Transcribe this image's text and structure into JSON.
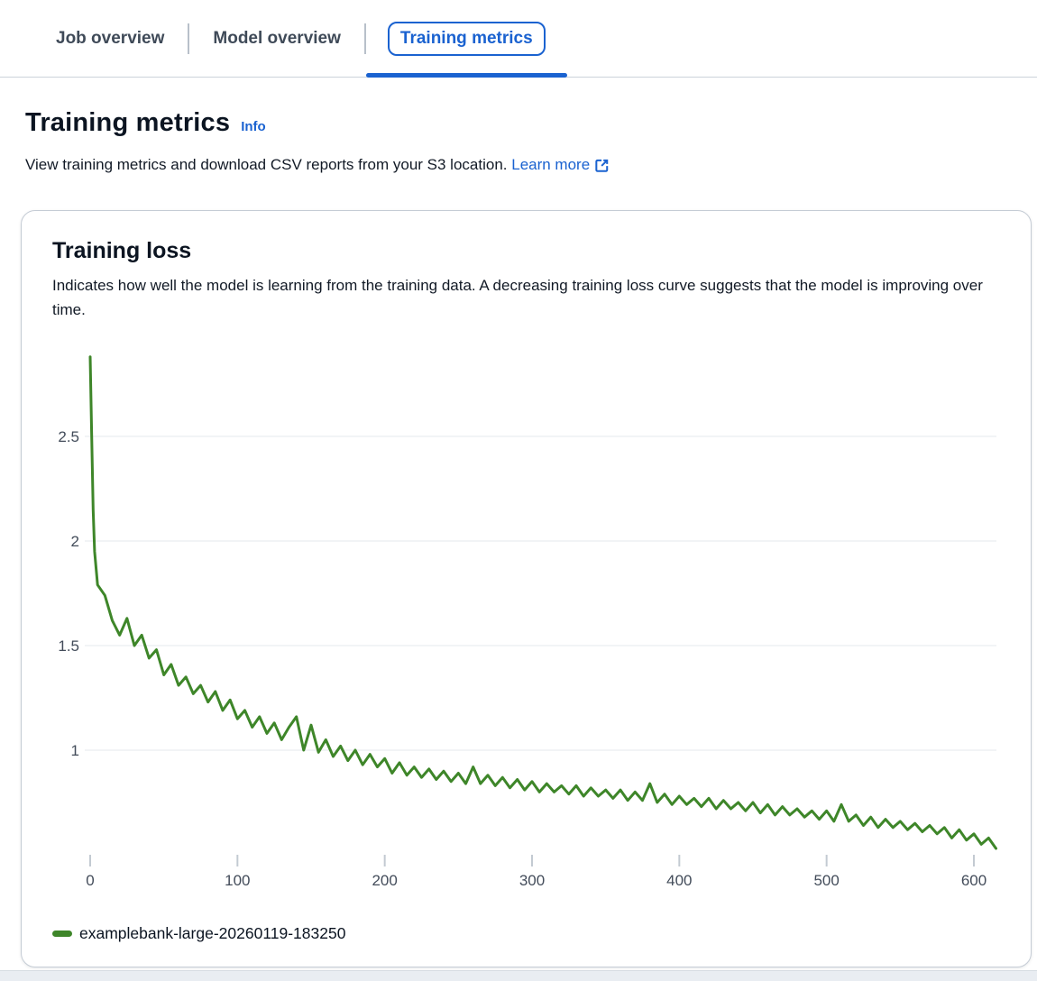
{
  "tabs": [
    {
      "label": "Job overview",
      "active": false
    },
    {
      "label": "Model overview",
      "active": false
    },
    {
      "label": "Training metrics",
      "active": true
    }
  ],
  "header": {
    "title": "Training metrics",
    "info_label": "Info",
    "description": "View training metrics and download CSV reports from your S3 location.",
    "learn_more_label": "Learn more",
    "external_link_icon": "external-link-icon"
  },
  "card": {
    "title": "Training loss",
    "description": "Indicates how well the model is learning from the training data. A decreasing training loss curve suggests that the model is improving over time."
  },
  "colors": {
    "accent": "#1a62d0",
    "series_green": "#3e8629",
    "axis_label": "#434c5a",
    "gridline": "#e6e9ed",
    "tick": "#c3cad2"
  },
  "chart_data": {
    "type": "line",
    "title": "Training loss",
    "xlabel": "",
    "ylabel": "",
    "xlim": [
      0,
      617
    ],
    "ylim": [
      0.45,
      2.95
    ],
    "x_ticks": [
      0,
      100,
      200,
      300,
      400,
      500,
      600
    ],
    "y_ticks": [
      1,
      1.5,
      2,
      2.5
    ],
    "grid": "horizontal",
    "legend_position": "bottom-left",
    "series": [
      {
        "name": "examplebank-large-20260119-183250",
        "color": "#3e8629",
        "x": [
          0,
          1,
          2,
          3,
          5,
          10,
          15,
          20,
          25,
          30,
          35,
          40,
          45,
          50,
          55,
          60,
          65,
          70,
          75,
          80,
          85,
          90,
          95,
          100,
          105,
          110,
          115,
          120,
          125,
          130,
          135,
          140,
          145,
          150,
          155,
          160,
          165,
          170,
          175,
          180,
          185,
          190,
          195,
          200,
          205,
          210,
          215,
          220,
          225,
          230,
          235,
          240,
          245,
          250,
          255,
          260,
          265,
          270,
          275,
          280,
          285,
          290,
          295,
          300,
          305,
          310,
          315,
          320,
          325,
          330,
          335,
          340,
          345,
          350,
          355,
          360,
          365,
          370,
          375,
          380,
          385,
          390,
          395,
          400,
          405,
          410,
          415,
          420,
          425,
          430,
          435,
          440,
          445,
          450,
          455,
          460,
          465,
          470,
          475,
          480,
          485,
          490,
          495,
          500,
          505,
          510,
          515,
          520,
          525,
          530,
          535,
          540,
          545,
          550,
          555,
          560,
          565,
          570,
          575,
          580,
          585,
          590,
          595,
          600,
          605,
          610,
          615
        ],
        "y": [
          2.88,
          2.52,
          2.15,
          1.95,
          1.79,
          1.74,
          1.62,
          1.55,
          1.63,
          1.5,
          1.55,
          1.44,
          1.48,
          1.36,
          1.41,
          1.31,
          1.35,
          1.27,
          1.31,
          1.23,
          1.28,
          1.19,
          1.24,
          1.15,
          1.19,
          1.11,
          1.16,
          1.08,
          1.13,
          1.05,
          1.11,
          1.16,
          1.0,
          1.12,
          0.99,
          1.05,
          0.97,
          1.02,
          0.95,
          1.0,
          0.93,
          0.98,
          0.92,
          0.96,
          0.89,
          0.94,
          0.88,
          0.92,
          0.87,
          0.91,
          0.86,
          0.9,
          0.85,
          0.89,
          0.84,
          0.92,
          0.84,
          0.88,
          0.83,
          0.87,
          0.82,
          0.86,
          0.81,
          0.85,
          0.8,
          0.84,
          0.8,
          0.83,
          0.79,
          0.83,
          0.78,
          0.82,
          0.78,
          0.81,
          0.77,
          0.81,
          0.76,
          0.8,
          0.76,
          0.84,
          0.75,
          0.79,
          0.74,
          0.78,
          0.74,
          0.77,
          0.73,
          0.77,
          0.72,
          0.76,
          0.72,
          0.75,
          0.71,
          0.75,
          0.7,
          0.74,
          0.69,
          0.73,
          0.69,
          0.72,
          0.68,
          0.71,
          0.67,
          0.71,
          0.66,
          0.74,
          0.66,
          0.69,
          0.64,
          0.68,
          0.63,
          0.67,
          0.63,
          0.66,
          0.62,
          0.65,
          0.61,
          0.64,
          0.6,
          0.63,
          0.58,
          0.62,
          0.57,
          0.6,
          0.55,
          0.58,
          0.53
        ]
      }
    ]
  }
}
